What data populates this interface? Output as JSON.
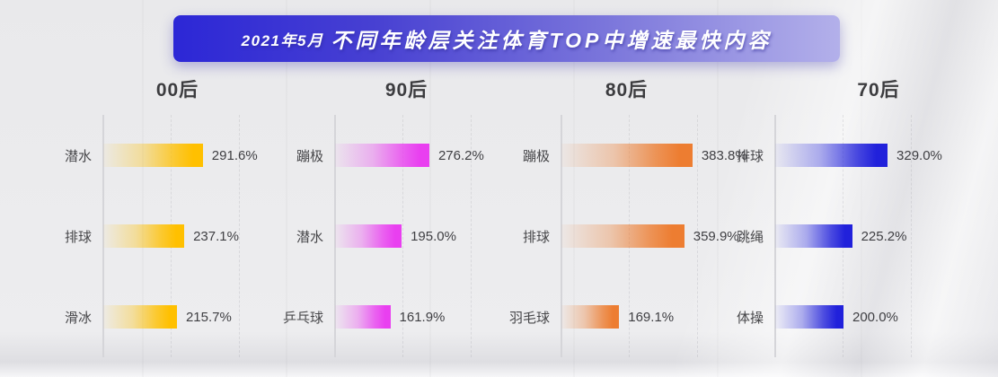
{
  "title": {
    "prefix": "2021年5月",
    "main": "不同年龄层关注体育TOP中增速最快内容"
  },
  "chart_data": {
    "type": "bar",
    "orientation": "horizontal",
    "title": "2021年5月不同年龄层关注体育TOP中增速最快内容",
    "value_suffix": "%",
    "xlim": [
      0,
      420
    ],
    "gridline_values": [
      200,
      400
    ],
    "grid": "dashed-vertical",
    "legend": "none",
    "groups": [
      {
        "label": "00后",
        "color": "#FFC000",
        "items": [
          {
            "name": "潜水",
            "value": 291.6,
            "display": "291.6%"
          },
          {
            "name": "排球",
            "value": 237.1,
            "display": "237.1%"
          },
          {
            "name": "滑冰",
            "value": 215.7,
            "display": "215.7%"
          }
        ]
      },
      {
        "label": "90后",
        "color": "#E93FF0",
        "items": [
          {
            "name": "蹦极",
            "value": 276.2,
            "display": "276.2%"
          },
          {
            "name": "潜水",
            "value": 195.0,
            "display": "195.0%"
          },
          {
            "name": "乒乓球",
            "value": 161.9,
            "display": "161.9%"
          }
        ]
      },
      {
        "label": "80后",
        "color": "#ED7D31",
        "items": [
          {
            "name": "蹦极",
            "value": 383.8,
            "display": "383.8%"
          },
          {
            "name": "排球",
            "value": 359.9,
            "display": "359.9%"
          },
          {
            "name": "羽毛球",
            "value": 169.1,
            "display": "169.1%"
          }
        ]
      },
      {
        "label": "70后",
        "color": "#2121DB",
        "items": [
          {
            "name": "排球",
            "value": 329.0,
            "display": "329.0%"
          },
          {
            "name": "跳绳",
            "value": 225.2,
            "display": "225.2%"
          },
          {
            "name": "体操",
            "value": 200.0,
            "display": "200.0%"
          }
        ]
      }
    ]
  }
}
